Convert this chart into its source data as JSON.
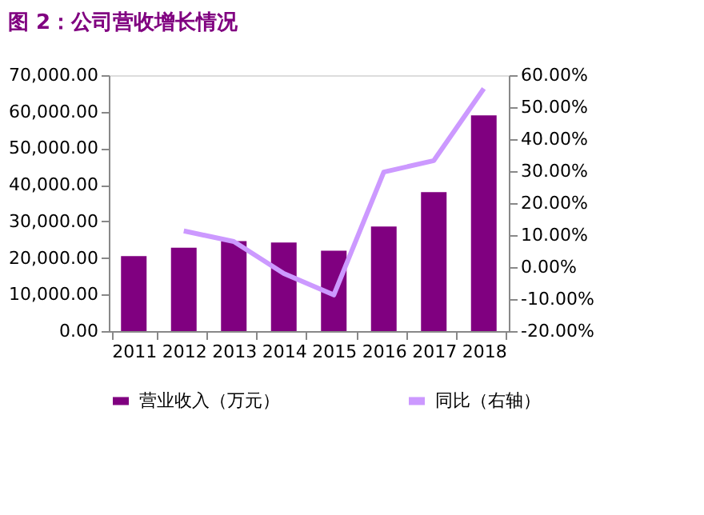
{
  "chart_data": {
    "type": "bar",
    "title": "图 2：公司营收增长情况",
    "categories": [
      "2011",
      "2012",
      "2013",
      "2014",
      "2015",
      "2016",
      "2017",
      "2018"
    ],
    "series": [
      {
        "name": "营业收入（万元）",
        "color": "#800080",
        "values": [
          20500,
          22800,
          24600,
          24200,
          22000,
          28600,
          38000,
          59000
        ]
      },
      {
        "name": "同比（右轴）",
        "type": "line",
        "axis": "y2",
        "color": "#cc99ff",
        "values": [
          null,
          11.3,
          8,
          -2,
          -8.7,
          29.7,
          33.3,
          55.8
        ]
      }
    ],
    "ylim": [
      0,
      70000
    ],
    "yticks": [
      {
        "value": 0,
        "label": "0.00"
      },
      {
        "value": 10000,
        "label": "10,000.00"
      },
      {
        "value": 20000,
        "label": "20,000.00"
      },
      {
        "value": 30000,
        "label": "30,000.00"
      },
      {
        "value": 40000,
        "label": "40,000.00"
      },
      {
        "value": 50000,
        "label": "50,000.00"
      },
      {
        "value": 60000,
        "label": "60,000.00"
      },
      {
        "value": 70000,
        "label": "70,000.00"
      }
    ],
    "y2lim": [
      -20,
      60
    ],
    "y2ticks": [
      {
        "value": -20,
        "label": "-20.00%"
      },
      {
        "value": -10,
        "label": "-10.00%"
      },
      {
        "value": 0,
        "label": "0.00%"
      },
      {
        "value": 10,
        "label": "10.00%"
      },
      {
        "value": 20,
        "label": "20.00%"
      },
      {
        "value": 30,
        "label": "30.00%"
      },
      {
        "value": 40,
        "label": "40.00%"
      },
      {
        "value": 50,
        "label": "50.00%"
      },
      {
        "value": 60,
        "label": "60.00%"
      }
    ],
    "grid": false,
    "legend": "bottom"
  }
}
